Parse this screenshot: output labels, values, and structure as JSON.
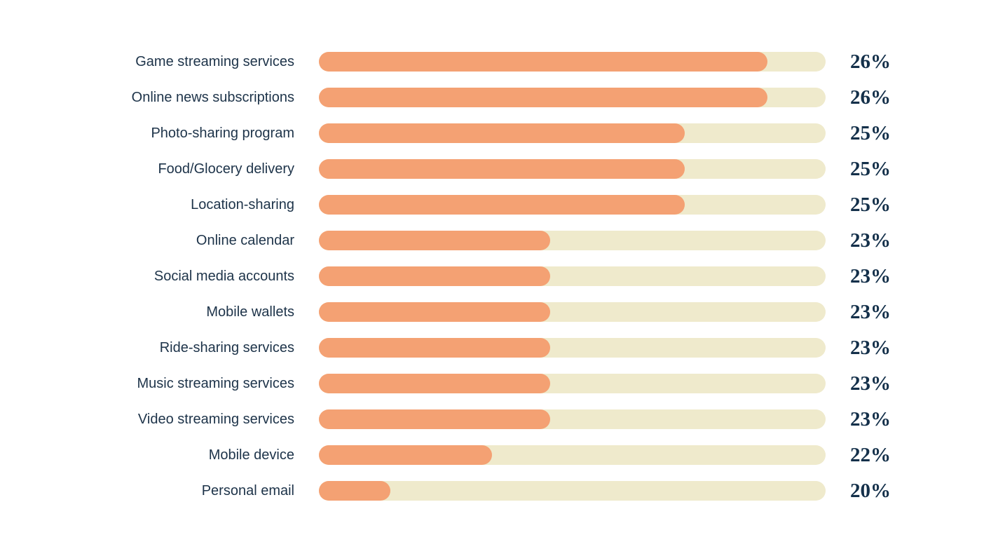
{
  "chart_data": {
    "type": "bar",
    "orientation": "horizontal",
    "title": "",
    "categories": [
      "Game streaming services",
      "Online news subscriptions",
      "Photo-sharing program",
      "Food/Glocery delivery",
      "Location-sharing",
      "Online calendar",
      "Social media accounts",
      "Mobile wallets",
      "Ride-sharing services",
      "Music streaming services",
      "Video streaming services",
      "Mobile device",
      "Personal email"
    ],
    "values": [
      26,
      26,
      25,
      25,
      25,
      23,
      23,
      23,
      23,
      23,
      23,
      22,
      20
    ],
    "value_suffix": "%",
    "bar_fill_fractions": [
      0.885,
      0.885,
      0.722,
      0.722,
      0.722,
      0.456,
      0.456,
      0.456,
      0.456,
      0.456,
      0.456,
      0.342,
      0.141
    ],
    "xlabel": "",
    "ylabel": "",
    "legend": "none",
    "grid": false,
    "colors": {
      "bar_fill": "#F4A173",
      "bar_track": "#EFEACC",
      "label_text": "#1D3349",
      "value_text": "#14304A",
      "background": "#FFFFFF"
    }
  }
}
